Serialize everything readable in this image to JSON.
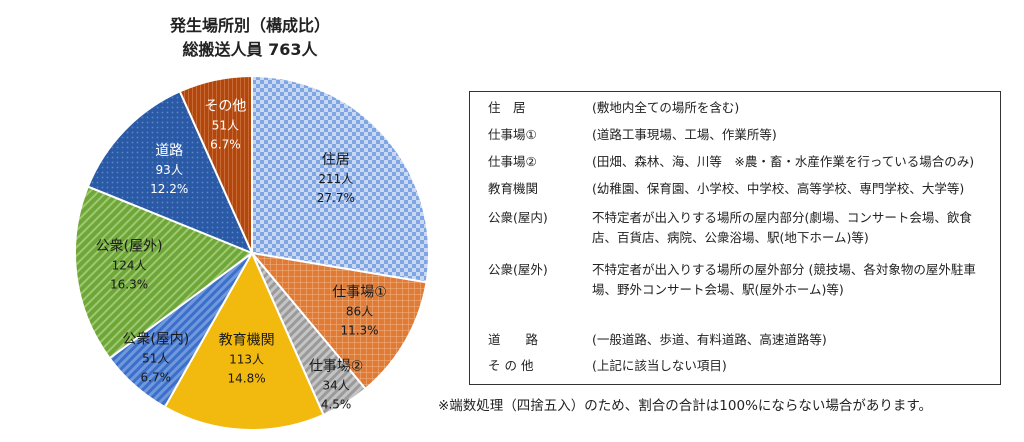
{
  "chart_data": {
    "type": "pie",
    "title": "発生場所別（構成比）",
    "subtitle": "総搬送人員 763人",
    "slices": [
      {
        "name": "住居",
        "count": "211人",
        "percent": "27.7%",
        "value": 211,
        "color": "#5b8fd6",
        "pattern": "checker"
      },
      {
        "name": "仕事場①",
        "count": "86人",
        "percent": "11.3%",
        "value": 86,
        "color": "#e07a34",
        "pattern": "grid"
      },
      {
        "name": "仕事場②",
        "count": "34人",
        "percent": "4.5%",
        "value": 34,
        "color": "#a3a3a3",
        "pattern": "diag"
      },
      {
        "name": "教育機関",
        "count": "113人",
        "percent": "14.8%",
        "value": 113,
        "color": "#f2b90f",
        "pattern": "solid"
      },
      {
        "name": "公衆(屋内)",
        "count": "51人",
        "percent": "6.7%",
        "value": 51,
        "color": "#3b6fc9",
        "pattern": "diag"
      },
      {
        "name": "公衆(屋外)",
        "count": "124人",
        "percent": "16.3%",
        "value": 124,
        "color": "#6fa63a",
        "pattern": "diag"
      },
      {
        "name": "道路",
        "count": "93人",
        "percent": "12.2%",
        "value": 93,
        "color": "#2a5aa6",
        "pattern": "dots"
      },
      {
        "name": "その他",
        "count": "51人",
        "percent": "6.7%",
        "value": 51,
        "color": "#b2470e",
        "pattern": "vlines"
      }
    ]
  },
  "legend": [
    {
      "name": "住　居",
      "desc": "(敷地内全ての場所を含む)"
    },
    {
      "name": "仕事場①",
      "desc": "(道路工事現場、工場、作業所等)"
    },
    {
      "name": "仕事場②",
      "desc": "(田畑、森林、海、川等　※農・畜・水産作業を行っている場合のみ)"
    },
    {
      "name": "教育機関",
      "desc": "(幼稚園、保育園、小学校、中学校、高等学校、専門学校、大学等)"
    },
    {
      "name": "公衆(屋内)",
      "desc": "不特定者が出入りする場所の屋内部分(劇場、コンサート会場、飲食店、百貨店、病院、公衆浴場、駅(地下ホーム)等)"
    },
    {
      "name": "公衆(屋外)",
      "desc": "不特定者が出入りする場所の屋外部分 (競技場、各対象物の屋外駐車場、野外コンサート会場、駅(屋外ホーム)等)"
    },
    {
      "name": "道　　路",
      "desc": "(一般道路、歩道、有料道路、高速道路等)"
    },
    {
      "name": "そ の 他",
      "desc": "(上記に該当しない項目)"
    }
  ],
  "footnote": "※端数処理（四捨五入）のため、割合の合計は100%にならない場合があります。"
}
